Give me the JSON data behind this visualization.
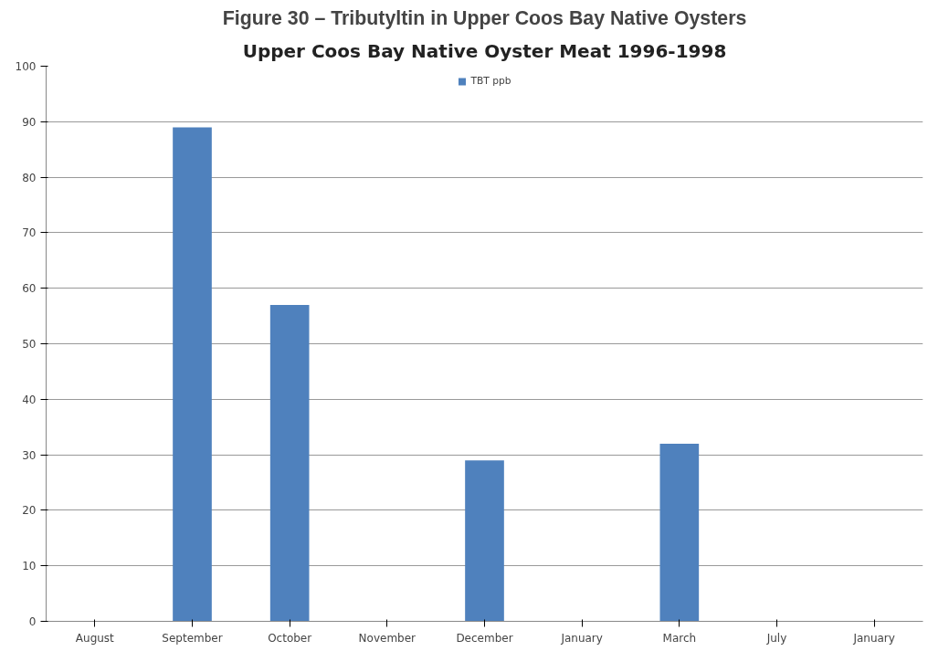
{
  "chart_data": {
    "type": "bar",
    "title": "Figure 30 – Tributyltin in Upper Coos Bay Native Oysters",
    "subtitle": "Upper Coos Bay Native Oyster Meat 1996-1998",
    "categories": [
      "August",
      "September",
      "October",
      "November",
      "December",
      "January",
      "March",
      "July",
      "January"
    ],
    "series": [
      {
        "name": "TBT ppb",
        "color": "#4f81bd",
        "values": [
          0,
          89,
          57,
          0,
          29,
          0,
          32,
          0,
          0
        ]
      }
    ],
    "ylim": [
      0,
      100
    ],
    "yticks": [
      0,
      10,
      20,
      30,
      40,
      50,
      60,
      70,
      80,
      90,
      100
    ],
    "grid": "y",
    "legend": "top"
  }
}
